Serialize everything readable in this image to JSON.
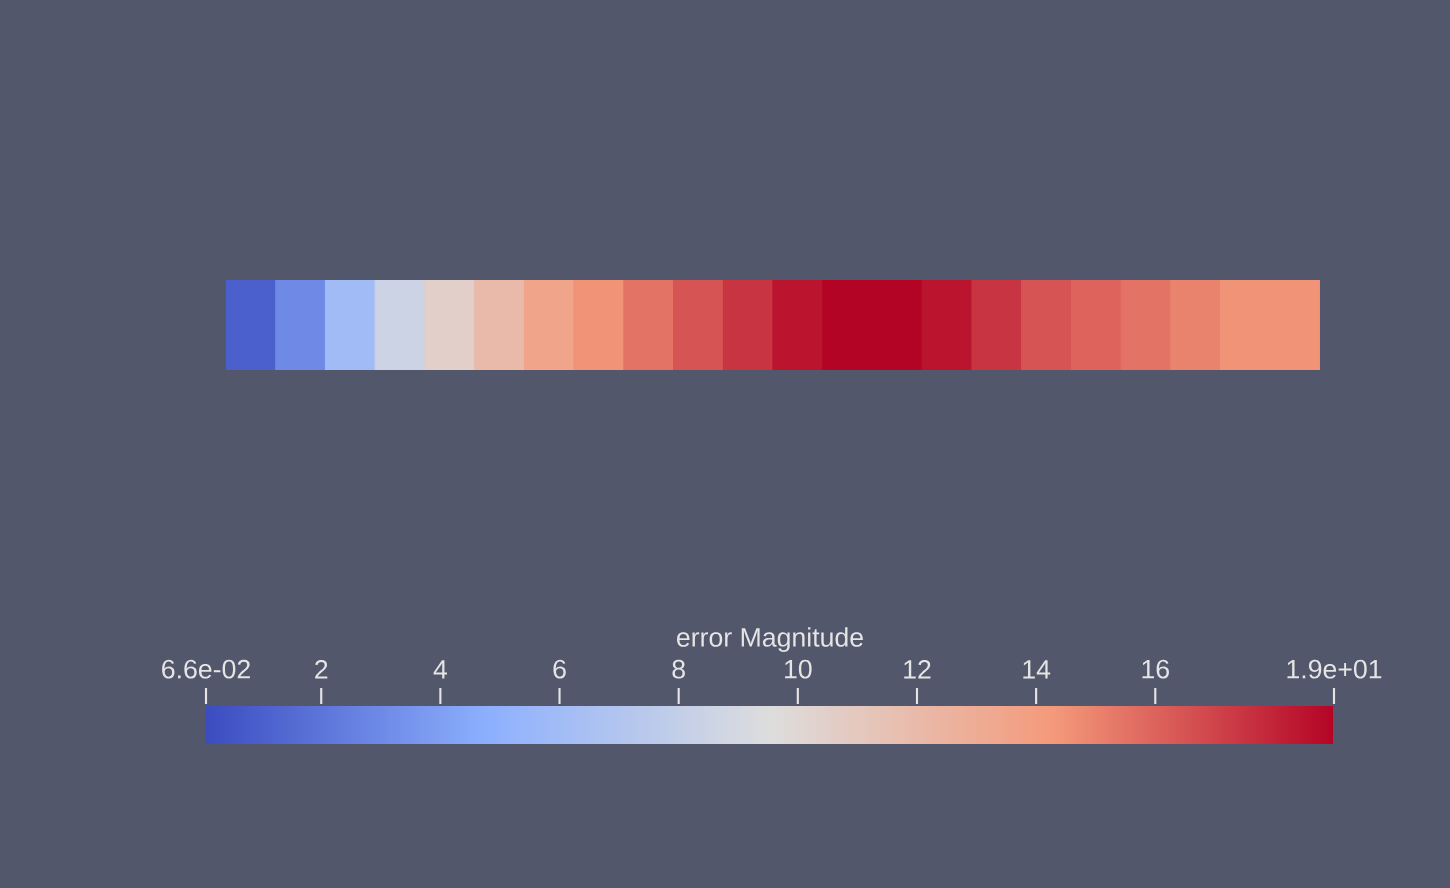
{
  "chart_data": {
    "type": "heatmap",
    "categories": [
      null,
      null,
      null,
      null,
      null,
      null,
      null,
      null,
      null,
      null,
      null,
      null,
      null,
      null,
      null,
      null,
      null,
      null,
      null,
      null,
      null,
      null
    ],
    "y_categories": [
      null
    ],
    "cells": [
      [
        1,
        3,
        6,
        8.5,
        10.5,
        12,
        13.5,
        14.5,
        15.5,
        16.5,
        17.5,
        18.5,
        19,
        19,
        18.5,
        17.5,
        16.5,
        16,
        15.5,
        15,
        14.5,
        14.5
      ]
    ],
    "clim": [
      0.066,
      19
    ],
    "cticks": [
      {
        "value": 0.066,
        "label": "6.6e-02"
      },
      2,
      4,
      6,
      8,
      10,
      12,
      14,
      16,
      {
        "value": 19,
        "label": "1.9e+01"
      }
    ],
    "clabel": "error Magnitude"
  }
}
